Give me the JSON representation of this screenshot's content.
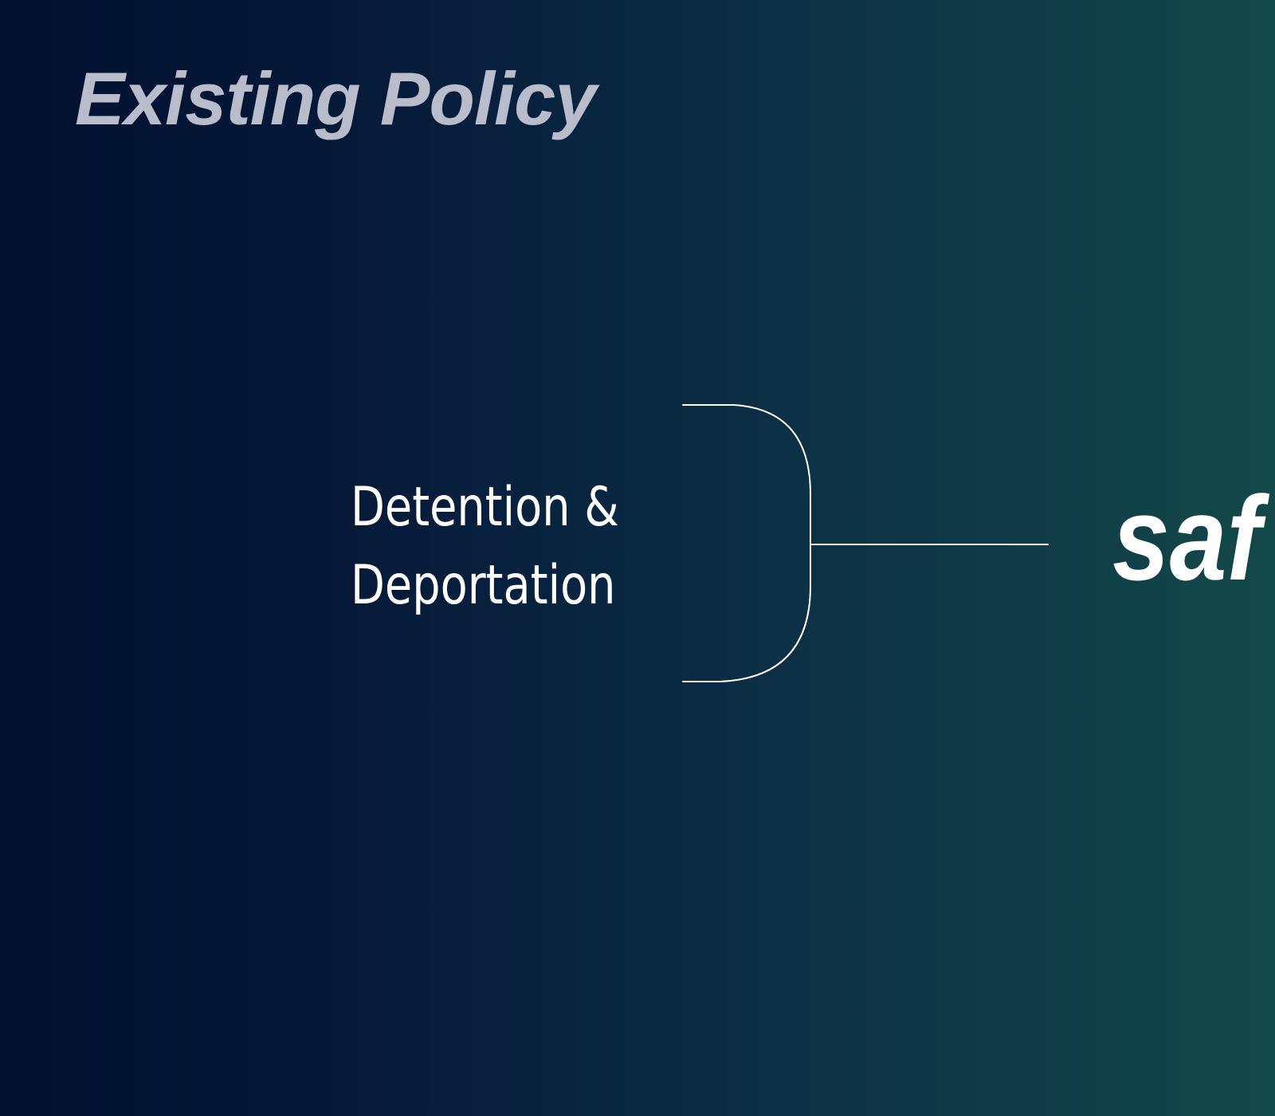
{
  "slide": {
    "title": "Existing Policy"
  },
  "diagram": {
    "node": {
      "line1": "Detention &",
      "line2": "Deportation"
    },
    "result_text": "saf",
    "colors": {
      "title": "#b9bccb",
      "text": "#ffffff",
      "gradient_start": "#02102f",
      "gradient_end": "#134849"
    }
  }
}
